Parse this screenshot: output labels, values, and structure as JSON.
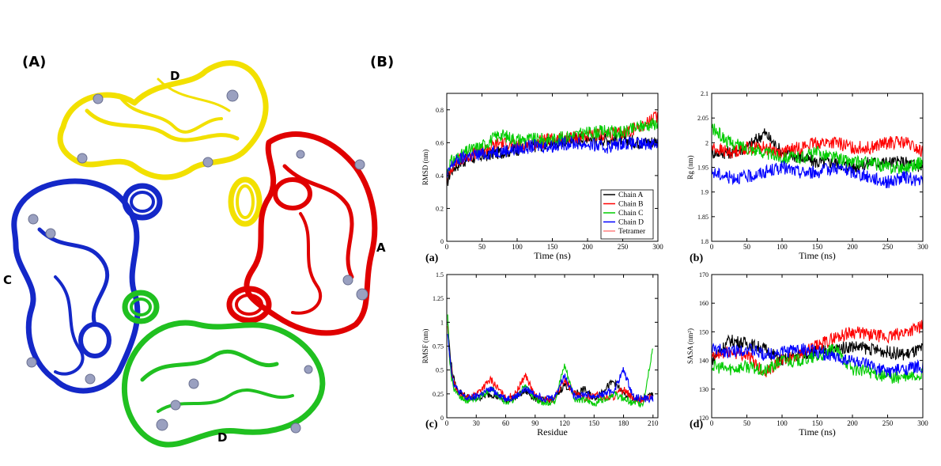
{
  "panel_labels": {
    "a": "(A)",
    "b": "(B)"
  },
  "structure": {
    "chain_labels": {
      "top": "D",
      "right": "A",
      "left": "C",
      "bottom": "D"
    },
    "colors": {
      "A": "#e00000",
      "B": "#f2e000",
      "C": "#1428c8",
      "D": "#20c020",
      "ion": "#9aa0c0"
    }
  },
  "chart_data": [
    {
      "id": "a",
      "type": "line",
      "panel_label": "(a)",
      "xlabel": "Time (ns)",
      "ylabel": "RMSD (nm)",
      "xlim": [
        0,
        300
      ],
      "ylim": [
        0,
        0.9
      ],
      "xticks": [
        "0",
        "50",
        "100",
        "150",
        "200",
        "250",
        "300"
      ],
      "yticks": [
        "0",
        "0.2",
        "0.4",
        "0.6",
        "0.8"
      ],
      "legend_position": "bottom-right",
      "series": [
        {
          "name": "Chain A",
          "color": "#000000",
          "x": [
            0,
            5,
            10,
            20,
            30,
            50,
            75,
            100,
            125,
            150,
            175,
            200,
            225,
            250,
            275,
            300
          ],
          "y": [
            0.35,
            0.42,
            0.45,
            0.48,
            0.5,
            0.52,
            0.54,
            0.56,
            0.58,
            0.6,
            0.62,
            0.63,
            0.62,
            0.62,
            0.6,
            0.61
          ]
        },
        {
          "name": "Chain B",
          "color": "#ff0000",
          "x": [
            0,
            5,
            10,
            20,
            30,
            50,
            75,
            100,
            125,
            150,
            175,
            200,
            225,
            250,
            275,
            300
          ],
          "y": [
            0.38,
            0.44,
            0.47,
            0.5,
            0.52,
            0.55,
            0.6,
            0.58,
            0.6,
            0.62,
            0.63,
            0.64,
            0.65,
            0.66,
            0.7,
            0.76
          ]
        },
        {
          "name": "Chain C",
          "color": "#00cc00",
          "x": [
            0,
            5,
            10,
            20,
            30,
            50,
            75,
            100,
            125,
            150,
            175,
            200,
            225,
            250,
            275,
            300
          ],
          "y": [
            0.42,
            0.48,
            0.5,
            0.52,
            0.55,
            0.58,
            0.65,
            0.62,
            0.62,
            0.62,
            0.64,
            0.66,
            0.67,
            0.66,
            0.7,
            0.72
          ]
        },
        {
          "name": "Chain D",
          "color": "#0000ff",
          "x": [
            0,
            5,
            10,
            20,
            30,
            50,
            75,
            100,
            125,
            150,
            175,
            200,
            225,
            250,
            275,
            300
          ],
          "y": [
            0.38,
            0.45,
            0.48,
            0.5,
            0.52,
            0.53,
            0.55,
            0.56,
            0.58,
            0.58,
            0.6,
            0.59,
            0.57,
            0.6,
            0.59,
            0.6
          ]
        },
        {
          "name": "Tetramer",
          "color": "#ff8080",
          "x": [],
          "y": []
        }
      ]
    },
    {
      "id": "b",
      "type": "line",
      "panel_label": "(b)",
      "xlabel": "Time (ns)",
      "ylabel": "Rg (nm)",
      "xlim": [
        0,
        300
      ],
      "ylim": [
        1.8,
        2.1
      ],
      "xticks": [
        "0",
        "50",
        "100",
        "150",
        "200",
        "250",
        "300"
      ],
      "yticks": [
        "1.8",
        "1.85",
        "1.9",
        "1.95",
        "2",
        "2.05",
        "2.1"
      ],
      "series": [
        {
          "name": "Chain A",
          "color": "#000000",
          "x": [
            0,
            25,
            50,
            75,
            100,
            125,
            150,
            175,
            200,
            225,
            250,
            275,
            300
          ],
          "y": [
            1.98,
            1.98,
            1.99,
            2.02,
            1.98,
            1.97,
            1.96,
            1.96,
            1.95,
            1.96,
            1.96,
            1.96,
            1.95
          ]
        },
        {
          "name": "Chain B",
          "color": "#ff0000",
          "x": [
            0,
            25,
            50,
            75,
            100,
            125,
            150,
            175,
            200,
            225,
            250,
            275,
            300
          ],
          "y": [
            1.99,
            1.98,
            1.99,
            1.99,
            1.98,
            1.99,
            2.0,
            2.0,
            1.99,
            1.99,
            2.0,
            2.0,
            1.98
          ]
        },
        {
          "name": "Chain C",
          "color": "#00cc00",
          "x": [
            0,
            25,
            50,
            75,
            100,
            125,
            150,
            175,
            200,
            225,
            250,
            275,
            300
          ],
          "y": [
            2.03,
            2.0,
            1.99,
            1.98,
            1.97,
            1.97,
            1.98,
            1.97,
            1.96,
            1.96,
            1.95,
            1.95,
            1.96
          ]
        },
        {
          "name": "Chain D",
          "color": "#0000ff",
          "x": [
            0,
            25,
            50,
            75,
            100,
            125,
            150,
            175,
            200,
            225,
            250,
            275,
            300
          ],
          "y": [
            1.94,
            1.93,
            1.93,
            1.94,
            1.95,
            1.94,
            1.94,
            1.95,
            1.94,
            1.93,
            1.92,
            1.93,
            1.92
          ]
        }
      ]
    },
    {
      "id": "c",
      "type": "line",
      "panel_label": "(c)",
      "xlabel": "Residue",
      "ylabel": "RMSF (nm)",
      "xlim": [
        0,
        215
      ],
      "ylim": [
        0,
        1.5
      ],
      "xticks": [
        "0",
        "30",
        "60",
        "90",
        "120",
        "150",
        "180",
        "210"
      ],
      "yticks": [
        "0",
        "0.25",
        "0.5",
        "0.75",
        "1",
        "1.25",
        "1.5"
      ],
      "series": [
        {
          "name": "Chain A",
          "color": "#000000",
          "x": [
            1,
            3,
            6,
            10,
            20,
            30,
            45,
            60,
            70,
            80,
            90,
            100,
            110,
            120,
            130,
            140,
            150,
            160,
            170,
            180,
            190,
            200,
            210
          ],
          "y": [
            1.0,
            0.7,
            0.45,
            0.3,
            0.22,
            0.2,
            0.25,
            0.18,
            0.22,
            0.28,
            0.2,
            0.18,
            0.2,
            0.35,
            0.25,
            0.3,
            0.2,
            0.3,
            0.38,
            0.25,
            0.2,
            0.2,
            0.25
          ]
        },
        {
          "name": "Chain B",
          "color": "#ff0000",
          "x": [
            1,
            3,
            6,
            10,
            20,
            30,
            45,
            60,
            70,
            80,
            90,
            100,
            110,
            120,
            130,
            140,
            150,
            160,
            170,
            180,
            190,
            200,
            210
          ],
          "y": [
            0.95,
            0.6,
            0.4,
            0.28,
            0.2,
            0.25,
            0.4,
            0.2,
            0.25,
            0.45,
            0.22,
            0.18,
            0.2,
            0.4,
            0.25,
            0.2,
            0.25,
            0.2,
            0.22,
            0.3,
            0.2,
            0.18,
            0.22
          ]
        },
        {
          "name": "Chain C",
          "color": "#00cc00",
          "x": [
            1,
            3,
            6,
            10,
            20,
            30,
            45,
            60,
            70,
            80,
            90,
            100,
            110,
            120,
            130,
            140,
            150,
            160,
            170,
            180,
            190,
            200,
            210
          ],
          "y": [
            1.05,
            0.55,
            0.35,
            0.25,
            0.18,
            0.2,
            0.3,
            0.15,
            0.2,
            0.35,
            0.2,
            0.15,
            0.18,
            0.55,
            0.2,
            0.18,
            0.15,
            0.2,
            0.25,
            0.2,
            0.15,
            0.15,
            0.75
          ]
        },
        {
          "name": "Chain D",
          "color": "#0000ff",
          "x": [
            1,
            3,
            6,
            10,
            20,
            30,
            45,
            60,
            70,
            80,
            90,
            100,
            110,
            120,
            130,
            140,
            150,
            160,
            170,
            180,
            190,
            200,
            210
          ],
          "y": [
            0.9,
            0.65,
            0.4,
            0.3,
            0.2,
            0.22,
            0.3,
            0.2,
            0.22,
            0.3,
            0.25,
            0.2,
            0.22,
            0.45,
            0.22,
            0.25,
            0.22,
            0.25,
            0.28,
            0.5,
            0.22,
            0.2,
            0.2
          ]
        }
      ]
    },
    {
      "id": "d",
      "type": "line",
      "panel_label": "(d)",
      "xlabel": "Time (ns)",
      "ylabel": "SASA (nm²)",
      "xlim": [
        0,
        300
      ],
      "ylim": [
        120,
        170
      ],
      "xticks": [
        "0",
        "50",
        "100",
        "150",
        "200",
        "250",
        "300"
      ],
      "yticks": [
        "120",
        "130",
        "140",
        "150",
        "160",
        "170"
      ],
      "series": [
        {
          "name": "Chain A",
          "color": "#000000",
          "x": [
            0,
            25,
            50,
            75,
            100,
            125,
            150,
            175,
            200,
            225,
            250,
            275,
            300
          ],
          "y": [
            140,
            147,
            146,
            144,
            140,
            142,
            143,
            144,
            145,
            144,
            143,
            142,
            144
          ]
        },
        {
          "name": "Chain B",
          "color": "#ff0000",
          "x": [
            0,
            25,
            50,
            75,
            100,
            125,
            150,
            175,
            200,
            225,
            250,
            275,
            300
          ],
          "y": [
            141,
            143,
            142,
            136,
            140,
            142,
            145,
            148,
            150,
            149,
            148,
            150,
            152
          ]
        },
        {
          "name": "Chain C",
          "color": "#00cc00",
          "x": [
            0,
            25,
            50,
            75,
            100,
            125,
            150,
            175,
            200,
            225,
            250,
            275,
            300
          ],
          "y": [
            138,
            137,
            138,
            136,
            140,
            140,
            141,
            144,
            137,
            136,
            134,
            134,
            135
          ]
        },
        {
          "name": "Chain D",
          "color": "#0000ff",
          "x": [
            0,
            25,
            50,
            75,
            100,
            125,
            150,
            175,
            200,
            225,
            250,
            275,
            300
          ],
          "y": [
            144,
            143,
            144,
            142,
            143,
            144,
            143,
            141,
            140,
            138,
            136,
            137,
            138
          ]
        }
      ]
    }
  ]
}
